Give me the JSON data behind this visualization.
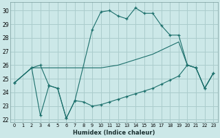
{
  "xlabel": "Humidex (Indice chaleur)",
  "background_color": "#cce8e8",
  "grid_color": "#aacccc",
  "line_color": "#1a6e6a",
  "xlim": [
    -0.5,
    23.5
  ],
  "ylim": [
    21.8,
    30.6
  ],
  "yticks": [
    22,
    23,
    24,
    25,
    26,
    27,
    28,
    29,
    30
  ],
  "xticks": [
    0,
    1,
    2,
    3,
    4,
    5,
    6,
    7,
    8,
    9,
    10,
    11,
    12,
    13,
    14,
    15,
    16,
    17,
    18,
    19,
    20,
    21,
    22,
    23
  ],
  "line1_x": [
    0,
    2,
    3,
    4,
    5,
    6,
    7,
    9,
    10,
    11,
    12,
    13,
    14,
    15,
    16,
    17,
    18,
    19,
    20,
    21,
    22,
    23
  ],
  "line1_y": [
    24.7,
    25.8,
    26.0,
    24.5,
    24.3,
    22.1,
    23.4,
    28.6,
    29.9,
    30.0,
    29.6,
    29.4,
    30.2,
    29.8,
    29.8,
    28.9,
    28.2,
    28.2,
    26.0,
    25.8,
    24.3,
    25.4
  ],
  "line2_x": [
    0,
    2,
    3,
    10,
    11,
    12,
    13,
    14,
    15,
    16,
    17,
    18,
    19,
    20,
    21,
    22,
    23
  ],
  "line2_y": [
    24.7,
    25.8,
    25.8,
    25.8,
    25.9,
    26.0,
    26.2,
    26.4,
    26.6,
    26.8,
    27.1,
    27.4,
    27.7,
    26.0,
    25.8,
    24.3,
    25.4
  ],
  "line3_x": [
    0,
    2,
    3,
    4,
    5,
    6,
    7,
    8,
    9,
    10,
    11,
    12,
    13,
    14,
    15,
    16,
    17,
    18,
    19,
    20,
    21,
    22,
    23
  ],
  "line3_y": [
    24.7,
    25.8,
    22.3,
    24.5,
    24.3,
    22.1,
    23.4,
    23.3,
    23.0,
    23.1,
    23.3,
    23.5,
    23.7,
    23.9,
    24.1,
    24.3,
    24.6,
    24.9,
    25.2,
    26.0,
    25.8,
    24.3,
    25.4
  ]
}
